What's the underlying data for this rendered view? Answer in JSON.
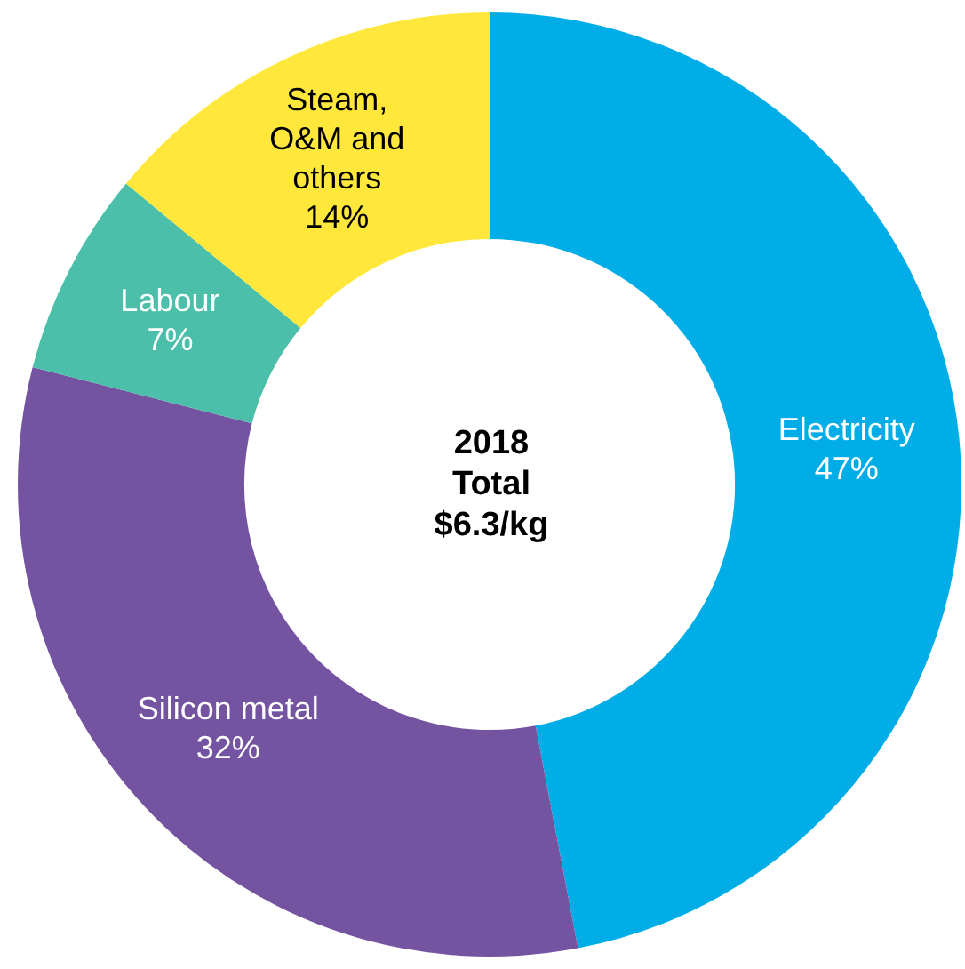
{
  "chart_data": {
    "type": "donut",
    "title": "2018 Total $6.3/kg",
    "categories": [
      "Electricity",
      "Silicon metal",
      "Labour",
      "Steam, O&M and others"
    ],
    "values": [
      47,
      32,
      7,
      14
    ],
    "value_labels": [
      "47%",
      "32%",
      "7%",
      "14%"
    ],
    "colors": [
      "#00ade6",
      "#7453a1",
      "#4bbfa9",
      "#ffe83b"
    ],
    "legend": false
  }
}
